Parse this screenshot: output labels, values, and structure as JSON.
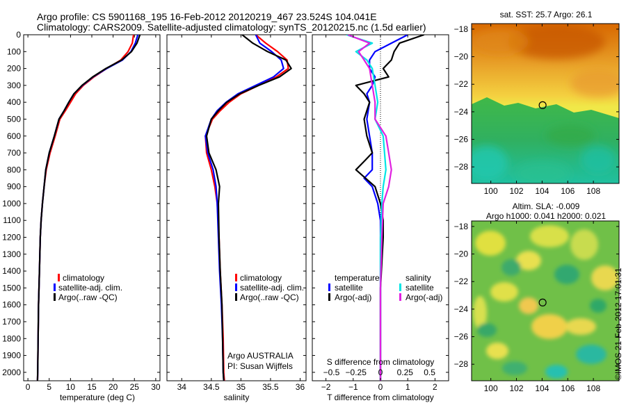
{
  "header": {
    "line1": "Argo profile: CS 5901168_195 16-Feb-2012 20120219_467 23.524S 104.041E",
    "line2": "Climatology: CARS2009. Satellite-adjusted climatology: synTS_20120215.nc (1.5d earlier)"
  },
  "colors": {
    "climatology": "#ff0000",
    "satellite": "#0000ff",
    "argo": "#000000",
    "salinity_satellite": "#00e5e5",
    "salinity_argo": "#e020e0"
  },
  "chart_data": [
    {
      "id": "temperature",
      "type": "line",
      "xlabel": "temperature (deg C)",
      "ylabel": "",
      "xlim": [
        -1,
        31
      ],
      "ylim": [
        2050,
        0
      ],
      "xticks": [
        0,
        5,
        10,
        15,
        20,
        25,
        30
      ],
      "xtick_labels": [
        "0",
        "5",
        "10",
        "15",
        "20",
        "25",
        "30"
      ],
      "yticks": [
        0,
        100,
        200,
        300,
        400,
        500,
        600,
        700,
        800,
        900,
        1000,
        1100,
        1200,
        1300,
        1400,
        1500,
        1600,
        1700,
        1800,
        1900,
        2000
      ],
      "ytick_labels": [
        "0",
        "100",
        "200",
        "300",
        "400",
        "500",
        "600",
        "700",
        "800",
        "900",
        "1000",
        "1100",
        "1200",
        "1300",
        "1400",
        "1500",
        "1600",
        "1700",
        "1800",
        "1900",
        "2000"
      ],
      "legend": [
        "climatology",
        "satellite-adj. clim.",
        "Argo(..raw -QC)"
      ],
      "legend_position": "lower-left",
      "series": [
        {
          "name": "climatology",
          "color": "#ff0000",
          "x": [
            24.8,
            24.5,
            23.5,
            21.8,
            18.5,
            15.5,
            13.0,
            11.2,
            10.0,
            8.8,
            7.5,
            6.4,
            5.2,
            4.3,
            3.8,
            3.4,
            3.1,
            2.9,
            2.7,
            2.5,
            2.4,
            2.3,
            2.25
          ],
          "y": [
            0,
            50,
            100,
            150,
            200,
            250,
            300,
            350,
            400,
            450,
            500,
            600,
            700,
            800,
            900,
            1000,
            1100,
            1200,
            1400,
            1600,
            1800,
            2000,
            2050
          ]
        },
        {
          "name": "satellite",
          "color": "#0000ff",
          "x": [
            25.8,
            25.2,
            24.2,
            22.2,
            18.5,
            15.3,
            12.8,
            10.8,
            9.6,
            8.5,
            7.3,
            6.2,
            5.0,
            4.2,
            3.8,
            3.4,
            3.1,
            2.9,
            2.7,
            2.5,
            2.4,
            2.3,
            2.25
          ],
          "y": [
            0,
            50,
            100,
            150,
            200,
            250,
            300,
            350,
            400,
            450,
            500,
            600,
            700,
            800,
            900,
            1000,
            1100,
            1200,
            1400,
            1600,
            1800,
            2000,
            2050
          ]
        },
        {
          "name": "Argo",
          "color": "#000000",
          "x": [
            26.3,
            25.6,
            24.3,
            22.0,
            18.3,
            15.2,
            12.7,
            10.8,
            9.6,
            8.5,
            7.3,
            6.2,
            5.0,
            4.2,
            3.8,
            3.4,
            3.1,
            2.9,
            2.7,
            2.5,
            2.4,
            2.3,
            2.25
          ],
          "y": [
            0,
            50,
            100,
            150,
            200,
            250,
            300,
            350,
            400,
            450,
            500,
            600,
            700,
            800,
            900,
            1000,
            1100,
            1200,
            1400,
            1600,
            1800,
            2000,
            2050
          ]
        }
      ]
    },
    {
      "id": "salinity",
      "type": "line",
      "xlabel": "salinity",
      "ylabel": "",
      "xlim": [
        33.75,
        36.1
      ],
      "ylim": [
        2050,
        0
      ],
      "xticks": [
        34,
        34.5,
        35,
        35.5,
        36
      ],
      "xtick_labels": [
        "34",
        "34.5",
        "35",
        "35.5",
        "36"
      ],
      "legend": [
        "climatology",
        "satellite-adj. clim.",
        "Argo(..raw -QC)"
      ],
      "legend_position": "lower-right",
      "annotation": {
        "line1": "Argo AUSTRALIA",
        "line2": "PI: Susan Wijffels"
      },
      "series": [
        {
          "name": "climatology",
          "color": "#ff0000",
          "x": [
            35.25,
            35.42,
            35.62,
            35.78,
            35.8,
            35.6,
            35.3,
            35.0,
            34.8,
            34.65,
            34.52,
            34.4,
            34.42,
            34.5,
            34.56,
            34.6,
            34.63,
            34.65,
            34.68,
            34.7,
            34.71,
            34.72
          ],
          "y": [
            0,
            50,
            100,
            150,
            200,
            250,
            300,
            350,
            400,
            450,
            500,
            600,
            700,
            800,
            900,
            1000,
            1200,
            1400,
            1600,
            1800,
            2000,
            2050
          ]
        },
        {
          "name": "satellite",
          "color": "#0000ff",
          "x": [
            35.25,
            35.32,
            35.52,
            35.68,
            35.72,
            35.55,
            35.25,
            34.95,
            34.75,
            34.6,
            34.5,
            34.4,
            34.44,
            34.53,
            34.58,
            34.6,
            34.62,
            34.64,
            34.67,
            34.69,
            34.7,
            34.71
          ],
          "y": [
            0,
            50,
            100,
            150,
            200,
            250,
            300,
            350,
            400,
            450,
            500,
            600,
            700,
            800,
            900,
            1000,
            1200,
            1400,
            1600,
            1800,
            2000,
            2050
          ]
        },
        {
          "name": "Argo",
          "color": "#000000",
          "x": [
            35.02,
            35.2,
            35.45,
            35.76,
            35.85,
            35.65,
            35.3,
            34.98,
            34.76,
            34.62,
            34.5,
            34.42,
            34.46,
            34.58,
            34.64,
            34.62,
            34.63,
            34.65,
            34.68,
            34.69,
            34.7,
            34.71
          ],
          "y": [
            0,
            50,
            100,
            150,
            200,
            250,
            300,
            350,
            400,
            450,
            500,
            600,
            700,
            800,
            900,
            1000,
            1200,
            1400,
            1600,
            1800,
            2000,
            2050
          ]
        }
      ]
    },
    {
      "id": "differences",
      "type": "line",
      "xlabel": "T difference from climatology",
      "xlabel_top": "S difference from climatology",
      "xlim": [
        -2.5,
        2.5
      ],
      "ylim": [
        2050,
        0
      ],
      "xticks": [
        -2,
        -1,
        0,
        1,
        2
      ],
      "xtick_labels": [
        "−2",
        "−1",
        "0",
        "1",
        "2"
      ],
      "sticks_labels": [
        "−0.5",
        "−0.25",
        "0",
        "0.25",
        "0.5"
      ],
      "legend_groups": [
        {
          "title": "temperature",
          "items": [
            "satellite",
            "Argo(-adj)"
          ]
        },
        {
          "title": "salinity",
          "items": [
            "satellite",
            "Argo(-adj)"
          ]
        }
      ],
      "series": [
        {
          "name": "T satellite",
          "color": "#0000ff",
          "x": [
            1.0,
            0.4,
            -0.2,
            -0.4,
            -0.4,
            -0.2,
            -0.3,
            -0.5,
            -0.4,
            -0.5,
            -0.4,
            -0.3,
            -0.3,
            -0.6,
            -0.3,
            -0.1,
            0.0,
            0.0,
            0.0,
            0.0,
            0.0
          ],
          "y": [
            0,
            50,
            100,
            150,
            200,
            250,
            300,
            350,
            400,
            500,
            600,
            700,
            800,
            850,
            900,
            1000,
            1100,
            1200,
            1500,
            2000,
            2050
          ]
        },
        {
          "name": "T Argo",
          "color": "#000000",
          "x": [
            1.6,
            0.7,
            0.5,
            0.4,
            0.1,
            0.3,
            -0.9,
            -0.6,
            -0.4,
            -0.6,
            -0.5,
            -0.3,
            -0.6,
            -0.9,
            -0.2,
            0.0,
            0.1,
            0.1,
            0.0,
            0.0,
            0.0
          ],
          "y": [
            0,
            50,
            100,
            150,
            200,
            250,
            300,
            350,
            400,
            500,
            600,
            700,
            750,
            800,
            900,
            1000,
            1100,
            1200,
            1500,
            2000,
            2050
          ]
        },
        {
          "name": "S satellite",
          "color": "#00e5e5",
          "x": [
            -1.25,
            -0.3,
            -0.9,
            -0.5,
            -0.3,
            -0.2,
            -0.1,
            -0.2,
            0.1,
            0.2,
            0.1,
            0.05,
            0.0,
            0.0,
            0.0
          ],
          "y": [
            0,
            50,
            100,
            150,
            200,
            300,
            400,
            500,
            600,
            800,
            900,
            1000,
            1200,
            1500,
            2050
          ]
        },
        {
          "name": "S Argo",
          "color": "#e020e0",
          "x": [
            -1.2,
            -0.4,
            -0.8,
            -0.6,
            -0.4,
            -0.3,
            -0.2,
            -0.2,
            0.2,
            0.3,
            0.4,
            0.3,
            0.1,
            0.05,
            0.0,
            0.0
          ],
          "y": [
            0,
            50,
            100,
            150,
            200,
            300,
            400,
            500,
            600,
            700,
            800,
            900,
            1000,
            1200,
            1500,
            2050
          ]
        }
      ]
    },
    {
      "id": "sst_map",
      "type": "heatmap",
      "title": "sat. SST: 25.7 Argo: 26.1",
      "xlim": [
        98.5,
        110
      ],
      "ylim": [
        -29.2,
        -17.6
      ],
      "xticks": [
        100,
        102,
        104,
        106,
        108
      ],
      "xtick_labels": [
        "100",
        "102",
        "104",
        "106",
        "108"
      ],
      "yticks": [
        -18,
        -20,
        -22,
        -24,
        -26,
        -28
      ],
      "ytick_labels": [
        "−18",
        "−20",
        "−22",
        "−24",
        "−26",
        "−28"
      ],
      "marker": {
        "lon": 104.04,
        "lat": -23.52
      }
    },
    {
      "id": "sla_map",
      "type": "heatmap",
      "title": "Altim. SLA: -0.009",
      "subtitle": "Argo h1000: 0.041 h2000: 0.021",
      "xlim": [
        98.5,
        110
      ],
      "ylim": [
        -29.2,
        -17.6
      ],
      "xticks": [
        100,
        102,
        104,
        106,
        108
      ],
      "xtick_labels": [
        "100",
        "102",
        "104",
        "106",
        "108"
      ],
      "yticks": [
        -18,
        -20,
        -22,
        -24,
        -26,
        -28
      ],
      "ytick_labels": [
        "−18",
        "−20",
        "−22",
        "−24",
        "−26",
        "−28"
      ],
      "marker": {
        "lon": 104.04,
        "lat": -23.52
      }
    }
  ],
  "footer": {
    "stamp": "©IMOS 21-Feb-2012 17:01:31"
  }
}
